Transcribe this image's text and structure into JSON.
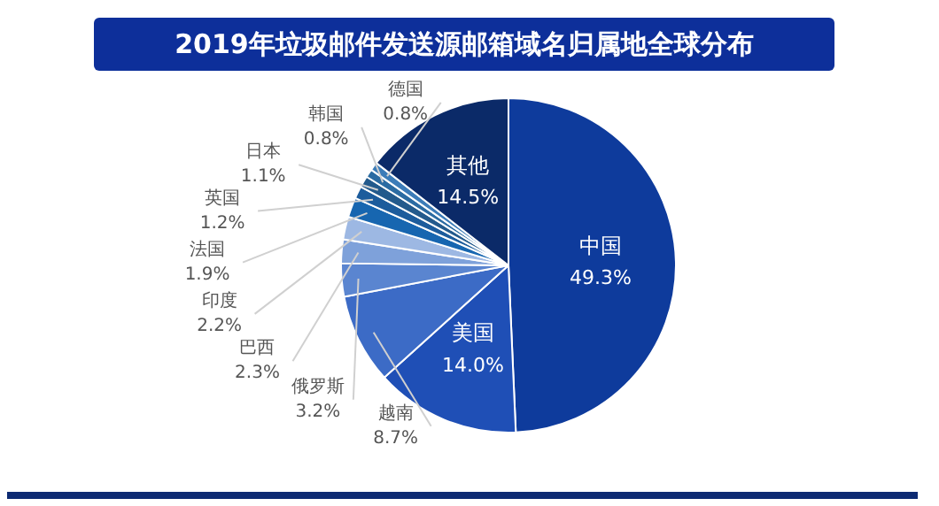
{
  "chart_data": {
    "type": "pie",
    "title": "2019年垃圾邮件发送源邮箱域名归属地全球分布",
    "categories": [
      "中国",
      "美国",
      "越南",
      "俄罗斯",
      "巴西",
      "印度",
      "法国",
      "英国",
      "日本",
      "韩国",
      "德国",
      "其他"
    ],
    "values": [
      49.3,
      14.0,
      8.7,
      3.2,
      2.3,
      2.2,
      1.9,
      1.2,
      1.1,
      0.8,
      0.8,
      14.5
    ],
    "value_labels": [
      "49.3%",
      "14.0%",
      "8.7%",
      "3.2%",
      "2.3%",
      "2.2%",
      "1.9%",
      "1.2%",
      "1.1%",
      "0.8%",
      "0.8%",
      "14.5%"
    ],
    "colors": [
      "#0e3b9c",
      "#1f4fb6",
      "#3c6bc6",
      "#5a85d0",
      "#7ea1da",
      "#9db8e3",
      "#1766b0",
      "#1c5c9c",
      "#235a8c",
      "#2b6ba2",
      "#3c7cb8",
      "#0b2a68"
    ],
    "legend": false
  }
}
